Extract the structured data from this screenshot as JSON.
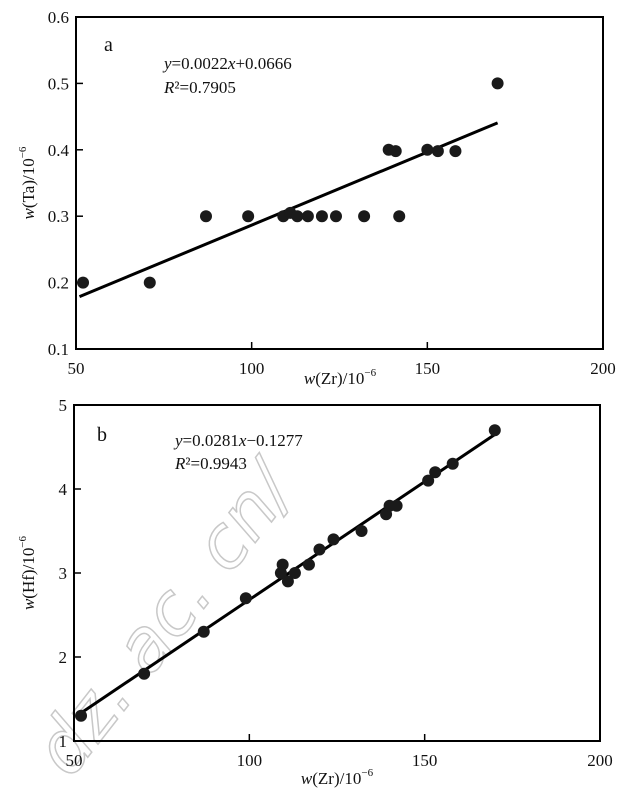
{
  "watermark": "dz. ac. cn/",
  "chart_data": [
    {
      "type": "scatter",
      "panel_label": "a",
      "xlabel": {
        "var": "w",
        "open": "(",
        "name": "Zr",
        "close": ")/10",
        "sup": "−6"
      },
      "ylabel": {
        "var": "w",
        "open": "(",
        "name": "Ta",
        "close": ")/10",
        "sup": "−6"
      },
      "xlim": [
        50,
        200
      ],
      "ylim": [
        0.1,
        0.6
      ],
      "xticks": [
        {
          "v": 50,
          "label": "50"
        },
        {
          "v": 100,
          "label": "100"
        },
        {
          "v": 150,
          "label": "150"
        },
        {
          "v": 200,
          "label": "200"
        }
      ],
      "yticks": [
        {
          "v": 0.1,
          "label": "0.1"
        },
        {
          "v": 0.2,
          "label": "0.2"
        },
        {
          "v": 0.3,
          "label": "0.3"
        },
        {
          "v": 0.4,
          "label": "0.4"
        },
        {
          "v": 0.5,
          "label": "0.5"
        },
        {
          "v": 0.6,
          "label": "0.6"
        }
      ],
      "points": [
        [
          52,
          0.2
        ],
        [
          71,
          0.2
        ],
        [
          87,
          0.3
        ],
        [
          99,
          0.3
        ],
        [
          109,
          0.3
        ],
        [
          111,
          0.305
        ],
        [
          113,
          0.3
        ],
        [
          116,
          0.3
        ],
        [
          120,
          0.3
        ],
        [
          124,
          0.3
        ],
        [
          132,
          0.3
        ],
        [
          139,
          0.4
        ],
        [
          141,
          0.398
        ],
        [
          142,
          0.3
        ],
        [
          150,
          0.4
        ],
        [
          153,
          0.398
        ],
        [
          158,
          0.398
        ],
        [
          170,
          0.5
        ]
      ],
      "fit": {
        "slope": 0.0022,
        "intercept": 0.0666,
        "x_range": [
          51,
          170
        ]
      },
      "equation": {
        "y": "y",
        "rest": "=0.0022",
        "x": "x",
        "tail": "+0.0666"
      },
      "r2": {
        "r": "R",
        "rest": "²=0.7905"
      },
      "grid": false
    },
    {
      "type": "scatter",
      "panel_label": "b",
      "xlabel": {
        "var": "w",
        "open": "(",
        "name": "Zr",
        "close": ")/10",
        "sup": "−6"
      },
      "ylabel": {
        "var": "w",
        "open": "(",
        "name": "Hf",
        "close": ")/10",
        "sup": "−6"
      },
      "xlim": [
        50,
        200
      ],
      "ylim": [
        1,
        5
      ],
      "xticks": [
        {
          "v": 50,
          "label": "50"
        },
        {
          "v": 100,
          "label": "100"
        },
        {
          "v": 150,
          "label": "150"
        },
        {
          "v": 200,
          "label": "200"
        }
      ],
      "yticks": [
        {
          "v": 1,
          "label": "1"
        },
        {
          "v": 2,
          "label": "2"
        },
        {
          "v": 3,
          "label": "3"
        },
        {
          "v": 4,
          "label": "4"
        },
        {
          "v": 5,
          "label": "5"
        }
      ],
      "points": [
        [
          52,
          1.3
        ],
        [
          70,
          1.8
        ],
        [
          87,
          2.3
        ],
        [
          99,
          2.7
        ],
        [
          109,
          3.0
        ],
        [
          109.5,
          3.1
        ],
        [
          111,
          2.9
        ],
        [
          113,
          3.0
        ],
        [
          117,
          3.1
        ],
        [
          120,
          3.28
        ],
        [
          124,
          3.4
        ],
        [
          132,
          3.5
        ],
        [
          139,
          3.7
        ],
        [
          140,
          3.8
        ],
        [
          142,
          3.8
        ],
        [
          151,
          4.1
        ],
        [
          153,
          4.2
        ],
        [
          158,
          4.3
        ],
        [
          170,
          4.7
        ]
      ],
      "fit": {
        "slope": 0.0281,
        "intercept": -0.1277,
        "x_range": [
          51,
          170
        ]
      },
      "equation": {
        "y": "y",
        "rest": "=0.0281",
        "x": "x",
        "tail": "−0.1277"
      },
      "r2": {
        "r": "R",
        "rest": "²=0.9943"
      },
      "grid": false
    }
  ]
}
